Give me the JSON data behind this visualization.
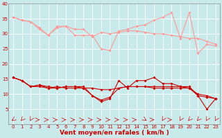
{
  "xlabel": "Vent moyen/en rafales ( km/h )",
  "background_color": "#c8eaea",
  "grid_color": "#b8d8d8",
  "x": [
    0,
    1,
    2,
    3,
    4,
    5,
    6,
    7,
    8,
    9,
    10,
    11,
    12,
    13,
    14,
    15,
    16,
    17,
    18,
    19,
    20,
    21,
    22,
    23
  ],
  "series_light": [
    [
      35.5,
      34.5,
      34.0,
      31.5,
      29.5,
      32.5,
      32.5,
      29.5,
      29.5,
      29.5,
      25.0,
      24.5,
      31.0,
      31.5,
      32.5,
      33.0,
      34.5,
      35.5,
      37.0,
      28.5,
      37.0,
      23.5,
      26.5,
      26.0
    ],
    [
      35.5,
      34.5,
      34.0,
      32.0,
      29.5,
      32.0,
      32.5,
      31.5,
      31.5,
      29.0,
      30.5,
      30.0,
      30.5,
      31.0,
      31.0,
      30.5,
      30.0,
      30.0,
      29.5,
      29.0,
      28.5,
      28.5,
      27.5,
      26.5
    ]
  ],
  "series_dark": [
    [
      15.5,
      14.5,
      12.5,
      13.0,
      12.0,
      12.0,
      12.5,
      12.5,
      12.5,
      9.5,
      7.5,
      8.5,
      14.5,
      12.0,
      14.5,
      14.5,
      15.5,
      13.5,
      13.5,
      12.5,
      12.5,
      9.5,
      5.0,
      8.5
    ],
    [
      15.5,
      14.5,
      12.5,
      13.0,
      12.5,
      12.0,
      12.5,
      12.5,
      12.0,
      9.5,
      8.0,
      9.0,
      12.0,
      12.5,
      12.5,
      12.5,
      12.5,
      12.5,
      12.5,
      12.5,
      12.0,
      9.5,
      9.0,
      8.5
    ],
    [
      15.5,
      14.5,
      12.5,
      12.5,
      12.0,
      12.5,
      12.0,
      12.0,
      12.0,
      12.0,
      11.5,
      11.5,
      12.0,
      12.5,
      12.5,
      12.5,
      12.0,
      12.0,
      12.0,
      12.0,
      12.0,
      10.0,
      9.5,
      8.5
    ]
  ],
  "ylim": [
    0,
    40
  ],
  "yticks": [
    5,
    10,
    15,
    20,
    25,
    30,
    35,
    40
  ],
  "xticks": [
    0,
    1,
    2,
    3,
    4,
    5,
    6,
    7,
    8,
    9,
    10,
    11,
    12,
    13,
    14,
    15,
    16,
    17,
    18,
    19,
    20,
    21,
    22,
    23
  ],
  "color_light": "#ff9999",
  "color_dark": "#cc0000",
  "marker_size": 2.0,
  "linewidth": 0.8,
  "xlabel_fontsize": 6.5,
  "tick_fontsize": 5.0,
  "arrow_angles": [
    225,
    210,
    200,
    90,
    90,
    90,
    90,
    90,
    90,
    90,
    90,
    90,
    90,
    90,
    90,
    135,
    90,
    200,
    90,
    200,
    210,
    210,
    200,
    200
  ]
}
